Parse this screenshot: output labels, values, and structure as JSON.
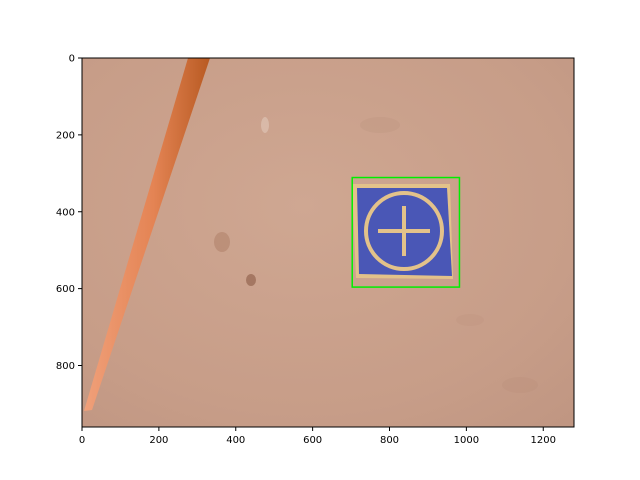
{
  "image_axes": {
    "x_range": [
      0,
      1280
    ],
    "y_range": [
      960,
      0
    ],
    "x_ticks": [
      "0",
      "200",
      "400",
      "600",
      "800",
      "1000",
      "1200"
    ],
    "y_ticks": [
      "0",
      "200",
      "400",
      "600",
      "800"
    ]
  },
  "scene": {
    "ground_color": "#c9a08c",
    "rod_color": "#e0895a",
    "marker_color": "#4a57b6",
    "marker_symbol": "circle-cross"
  },
  "detection_box": {
    "color": "#00ee00",
    "x_min": 703,
    "y_min": 311,
    "x_max": 982,
    "y_max": 596
  }
}
